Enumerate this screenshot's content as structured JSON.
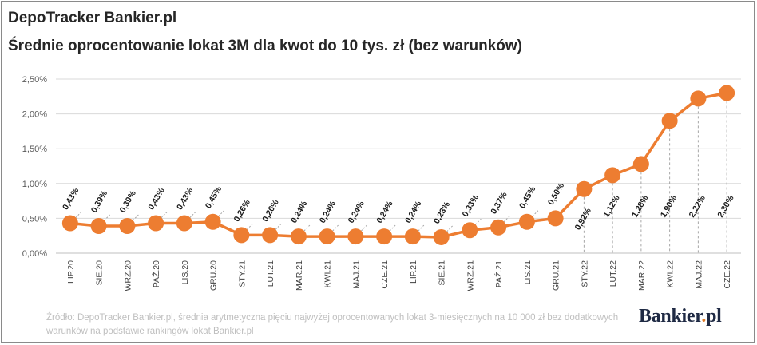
{
  "header": {
    "title": "DepoTracker Bankier.pl",
    "subtitle": "Średnie oprocentowanie lokat 3M dla kwot do 10 tys. zł (bez warunków)"
  },
  "footer": {
    "source": "Źródło: DepoTracker Bankier.pl, średnia arytmetyczna pięciu najwyżej oprocentowanych lokat 3-miesięcznych na 10 000 zł bez dodatkowych warunków na podstawie rankingów lokat Bankier.pl",
    "logo_main": "Bankier",
    "logo_dot": ".",
    "logo_end": "pl"
  },
  "chart_data": {
    "type": "line",
    "categories": [
      "LIP.20",
      "SIE.20",
      "WRZ.20",
      "PAŹ.20",
      "LIS.20",
      "GRU.20",
      "STY.21",
      "LUT.21",
      "MAR.21",
      "KWI.21",
      "MAJ.21",
      "CZE.21",
      "LIP.21",
      "SIE.21",
      "WRZ.21",
      "PAŹ.21",
      "LIS.21",
      "GRU.21",
      "STY.22",
      "LUT.22",
      "MAR.22",
      "KWI.22",
      "MAJ.22",
      "CZE.22"
    ],
    "values": [
      0.43,
      0.39,
      0.39,
      0.43,
      0.43,
      0.45,
      0.26,
      0.26,
      0.24,
      0.24,
      0.24,
      0.24,
      0.24,
      0.23,
      0.33,
      0.37,
      0.45,
      0.5,
      0.92,
      1.12,
      1.28,
      1.9,
      2.22,
      2.3
    ],
    "data_labels": [
      "0,43%",
      "0,39%",
      "0,39%",
      "0,43%",
      "0,43%",
      "0,45%",
      "0,26%",
      "0,26%",
      "0,24%",
      "0,24%",
      "0,24%",
      "0,24%",
      "0,24%",
      "0,23%",
      "0,33%",
      "0,37%",
      "0,45%",
      "0,50%",
      "0,92%",
      "1,12%",
      "1,28%",
      "1,90%",
      "2,22%",
      "2,30%"
    ],
    "y_ticks": [
      0,
      0.5,
      1.0,
      1.5,
      2.0,
      2.5
    ],
    "y_tick_labels": [
      "0,00%",
      "0,50%",
      "1,00%",
      "1,50%",
      "2,00%",
      "2,50%"
    ],
    "ylim": [
      0,
      2.5
    ],
    "grid": true,
    "legend": "none",
    "color": "#ED7D31"
  }
}
